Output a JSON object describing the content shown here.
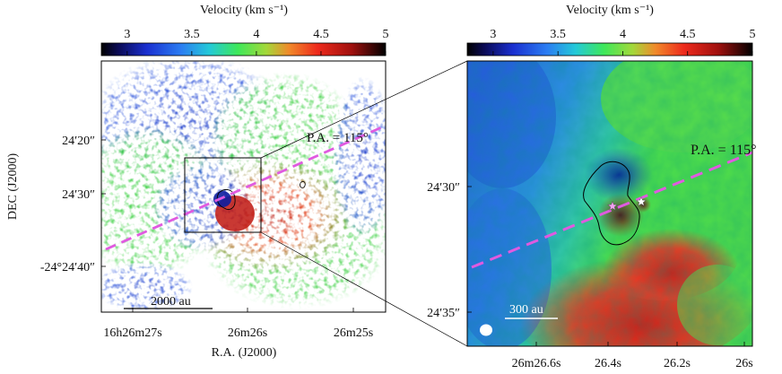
{
  "chart_data": [
    {
      "type": "heatmap",
      "panel": "left",
      "colorbar": {
        "title": "Velocity (km s⁻¹)",
        "range": [
          2.8,
          5.0
        ],
        "ticks": [
          3,
          3.5,
          4,
          4.5,
          5
        ],
        "tick_labels": [
          "3",
          "3.5",
          "4",
          "4.5",
          "5"
        ]
      },
      "xlabel": "R.A. (J2000)",
      "ylabel": "DEC (J2000)",
      "x_tick_labels": [
        "16h26m27s",
        "26m26s",
        "26m25s"
      ],
      "y_tick_labels": [
        "24′20″",
        "24′30″",
        "-24°24′40″"
      ],
      "pa_label": "P.A. = 115°",
      "scalebar_label": "2000 au",
      "has_zoom_box": true,
      "has_contour": true
    },
    {
      "type": "heatmap",
      "panel": "right",
      "colorbar": {
        "title": "Velocity (km s⁻¹)",
        "range": [
          2.8,
          5.0
        ],
        "ticks": [
          3,
          3.5,
          4,
          4.5,
          5
        ],
        "tick_labels": [
          "3",
          "3.5",
          "4",
          "4.5",
          "5"
        ]
      },
      "x_tick_labels": [
        "26m26.6s",
        "26.4s",
        "26.2s",
        "26s"
      ],
      "y_tick_labels": [
        "24′30″",
        "24′35″"
      ],
      "pa_label": "P.A. = 115°",
      "scalebar_label": "300 au",
      "stars": 2,
      "has_beam": true,
      "has_contour": true
    }
  ]
}
